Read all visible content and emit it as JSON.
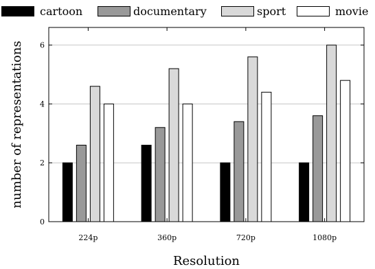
{
  "chart_data": {
    "type": "bar",
    "categories": [
      "224p",
      "360p",
      "720p",
      "1080p"
    ],
    "series": [
      {
        "name": "cartoon",
        "values": [
          2,
          2.6,
          2,
          2
        ],
        "color": "#000000"
      },
      {
        "name": "documentary",
        "values": [
          2.6,
          3.2,
          3.4,
          3.6
        ],
        "color": "#999999"
      },
      {
        "name": "sport",
        "values": [
          4.6,
          5.2,
          5.6,
          6.0
        ],
        "color": "#d9d9d9"
      },
      {
        "name": "movie",
        "values": [
          4.0,
          4.0,
          4.4,
          4.8
        ],
        "color": "#ffffff"
      }
    ],
    "title": "",
    "xlabel": "Resolution",
    "ylabel": "number of representations",
    "ylim": [
      0,
      6.6
    ],
    "yticks": [
      0,
      2,
      4,
      6
    ],
    "grid": "horizontal",
    "legend_position": "top"
  }
}
